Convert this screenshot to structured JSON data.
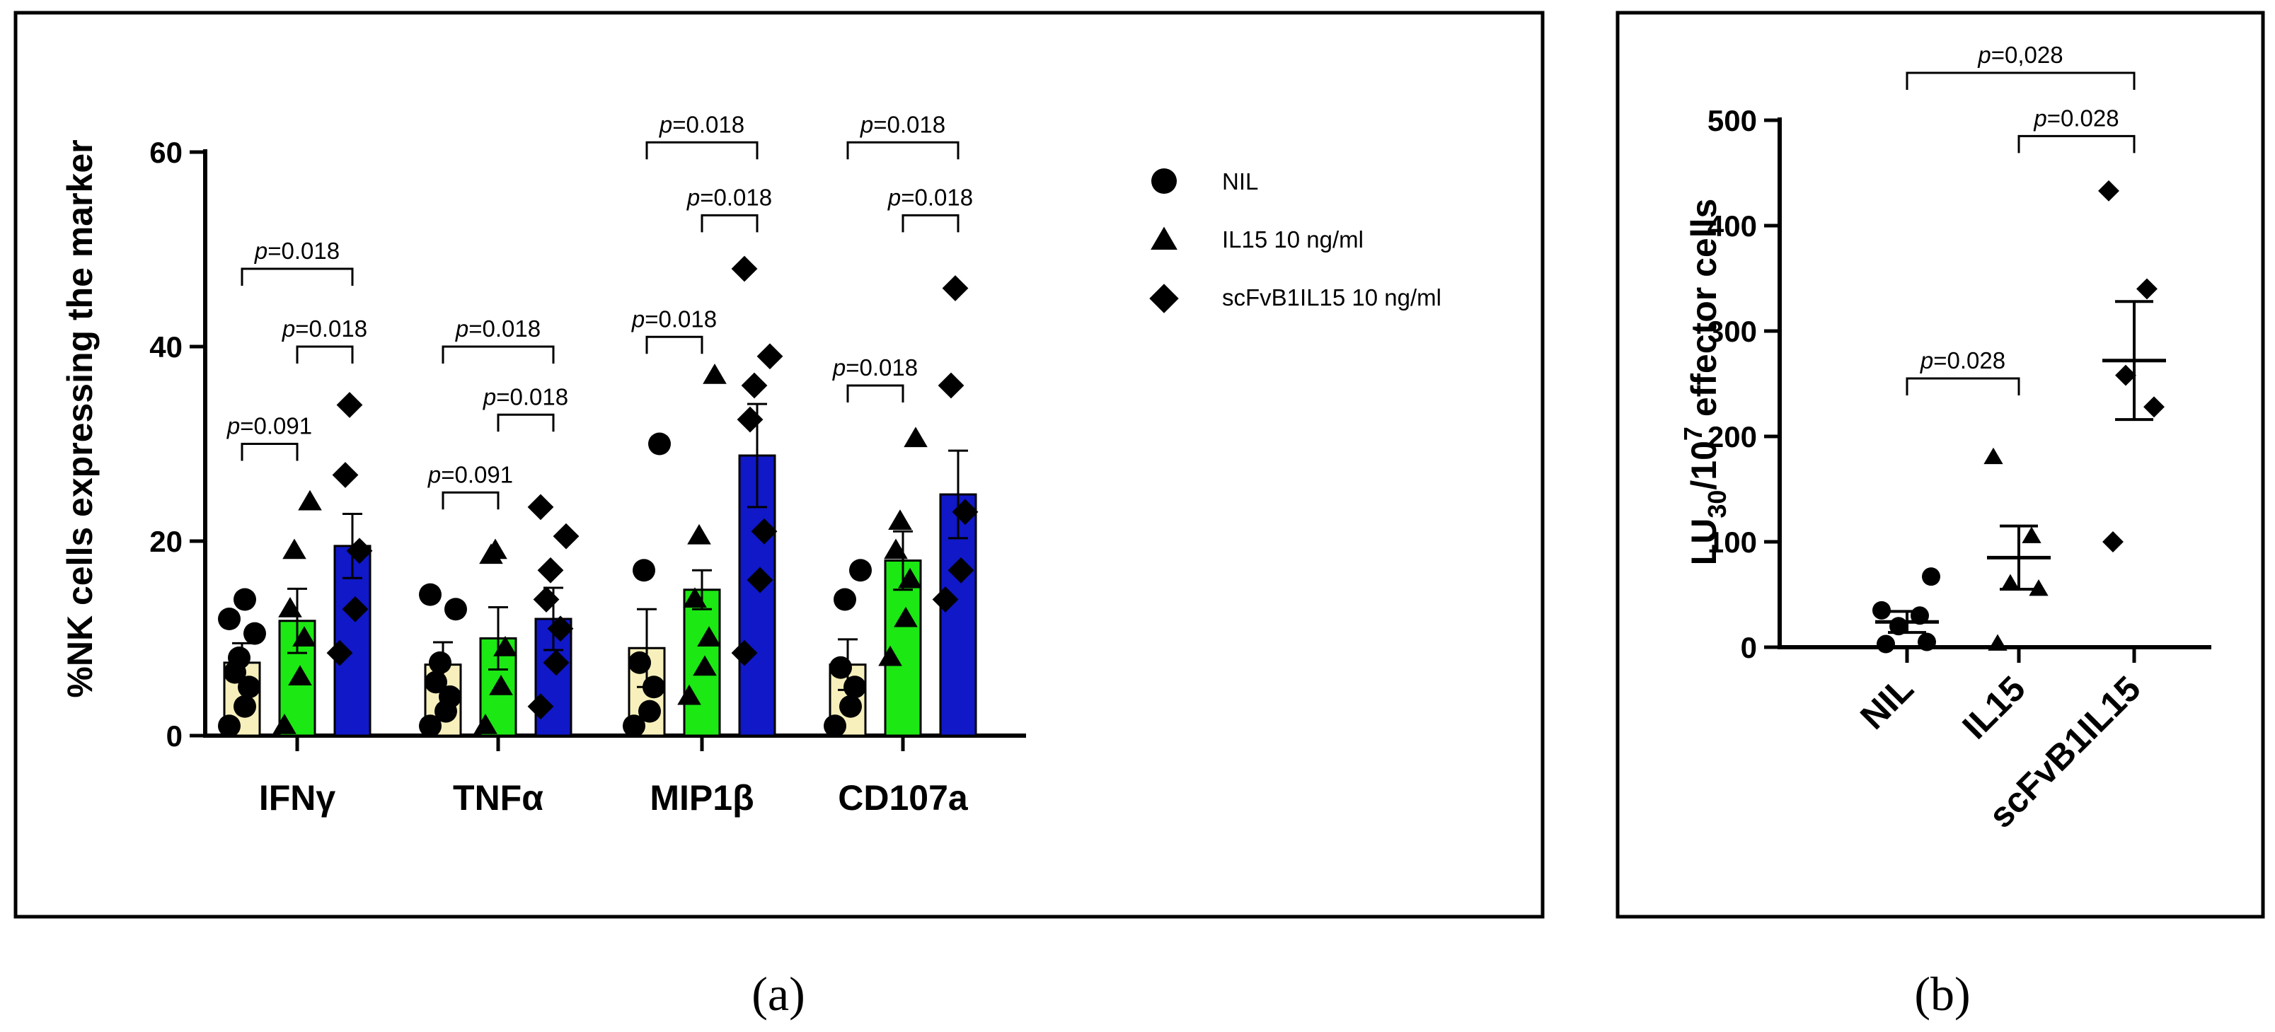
{
  "colors": {
    "nil": "#F7F0BC",
    "il15": "#1CE814",
    "scfv": "#1018C8",
    "marker": "#000000",
    "frame": "#000000"
  },
  "panel_labels": {
    "a": "(a)",
    "b": "(b)"
  },
  "legend": [
    {
      "label": "NIL",
      "marker": "circle"
    },
    {
      "label": "IL15 10 ng/ml",
      "marker": "triangle"
    },
    {
      "label": "scFvB1IL15 10 ng/ml",
      "marker": "diamond"
    }
  ],
  "chart_data": [
    {
      "type": "bar",
      "id": "a",
      "ylabel": "%NK cells expressing the marker",
      "ylim": [
        0,
        60
      ],
      "yticks": [
        "0",
        "20",
        "40",
        "60"
      ],
      "categories": [
        "IFNγ",
        "TNFα",
        "MIP1β",
        "CD107a"
      ],
      "series": [
        {
          "name": "NIL",
          "marker": "circle",
          "values": [
            7.5,
            7.3,
            9.0,
            7.3
          ],
          "sem": [
            2.0,
            2.3,
            4.0,
            2.6
          ],
          "points": [
            [
              1,
              3,
              5,
              6.5,
              8,
              10.5,
              12,
              14
            ],
            [
              1,
              2.5,
              4,
              5.5,
              7.5,
              13,
              14.5
            ],
            [
              1,
              2.5,
              5,
              7.5,
              17,
              30
            ],
            [
              1,
              3,
              5,
              7,
              14,
              17
            ]
          ]
        },
        {
          "name": "IL15 10 ng/ml",
          "marker": "triangle",
          "values": [
            11.8,
            10.0,
            15.0,
            18.0
          ],
          "sem": [
            3.3,
            3.2,
            2.0,
            3.0
          ],
          "points": [
            [
              1,
              6,
              10,
              13,
              19,
              24
            ],
            [
              1,
              5,
              9,
              18.5,
              19
            ],
            [
              4,
              7,
              10,
              14,
              20.5,
              37
            ],
            [
              8,
              12,
              16,
              19,
              22,
              30.5
            ]
          ]
        },
        {
          "name": "scFvB1IL15 10 ng/ml",
          "marker": "diamond",
          "values": [
            19.5,
            12.0,
            28.8,
            24.8
          ],
          "sem": [
            3.3,
            3.2,
            5.3,
            4.5
          ],
          "points": [
            [
              8.5,
              13,
              19,
              26.8,
              34
            ],
            [
              3,
              7.5,
              11,
              14,
              17,
              20.5,
              23.5
            ],
            [
              8.5,
              16,
              21,
              32.5,
              36,
              39,
              48
            ],
            [
              14,
              17,
              23,
              36,
              46
            ]
          ]
        }
      ],
      "comparisons": [
        {
          "group": 0,
          "from": 0,
          "to": 1,
          "label": "=0.091",
          "y": 30
        },
        {
          "group": 0,
          "from": 1,
          "to": 2,
          "label": "=0.018",
          "y": 40
        },
        {
          "group": 0,
          "from": 0,
          "to": 2,
          "label": "=0.018",
          "y": 48
        },
        {
          "group": 1,
          "from": 0,
          "to": 1,
          "label": "=0.091",
          "y": 25
        },
        {
          "group": 1,
          "from": 1,
          "to": 2,
          "label": "=0.018",
          "y": 33
        },
        {
          "group": 1,
          "from": 0,
          "to": 2,
          "label": "=0.018",
          "y": 40
        },
        {
          "group": 2,
          "from": 0,
          "to": 1,
          "label": "=0.018",
          "y": 41
        },
        {
          "group": 2,
          "from": 1,
          "to": 2,
          "label": "=0.018",
          "y": 53.5
        },
        {
          "group": 2,
          "from": 0,
          "to": 2,
          "label": "=0.018",
          "y": 61
        },
        {
          "group": 3,
          "from": 0,
          "to": 1,
          "label": "=0.018",
          "y": 36
        },
        {
          "group": 3,
          "from": 1,
          "to": 2,
          "label": "=0.018",
          "y": 53.5
        },
        {
          "group": 3,
          "from": 0,
          "to": 2,
          "label": "=0.018",
          "y": 61
        }
      ],
      "p_prefix": "p"
    },
    {
      "type": "scatter",
      "id": "b",
      "ylabel_main": "LU",
      "ylabel_sub": "30",
      "ylabel_mid": "/10",
      "ylabel_sup": "7",
      "ylabel_end": " effector cells",
      "ylim": [
        0,
        500
      ],
      "yticks": [
        "0",
        "100",
        "200",
        "300",
        "400",
        "500"
      ],
      "categories": [
        "NIL",
        "IL15",
        "scFvB1IL15"
      ],
      "groups": [
        {
          "marker": "circle",
          "mean": 24,
          "sem": 10,
          "points": [
            3,
            5,
            20,
            30,
            35,
            67
          ]
        },
        {
          "marker": "triangle",
          "mean": 85,
          "sem": 30,
          "points": [
            3,
            55,
            60,
            105,
            180
          ]
        },
        {
          "marker": "diamond",
          "mean": 272,
          "sem": 56,
          "points": [
            100,
            228,
            258,
            340,
            433
          ]
        }
      ],
      "comparisons": [
        {
          "from": 0,
          "to": 1,
          "label": "=0.028",
          "y": 255
        },
        {
          "from": 1,
          "to": 2,
          "label": "=0.028",
          "y": 485
        },
        {
          "from": 0,
          "to": 2,
          "label": "=0,028",
          "y": 545
        }
      ],
      "p_prefix": "p"
    }
  ]
}
